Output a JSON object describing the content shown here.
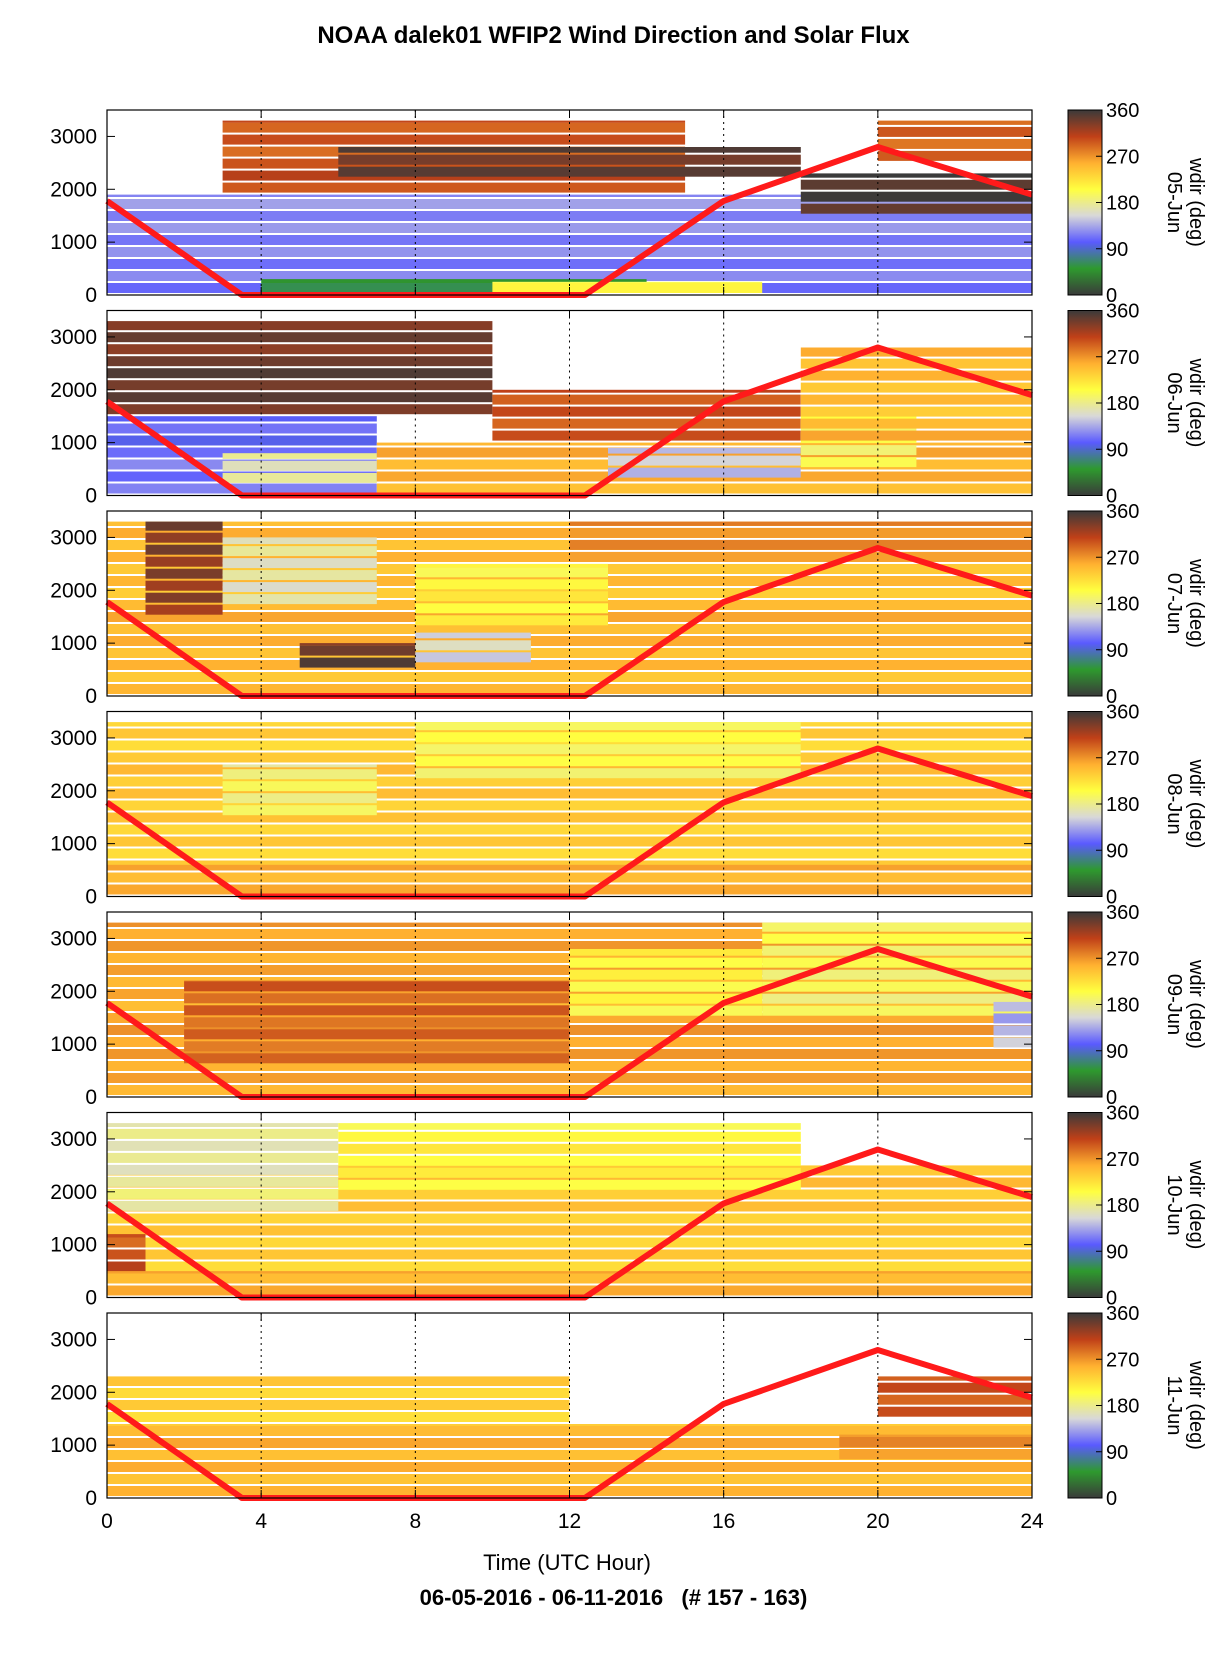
{
  "title": "NOAA dalek01 WFIP2 Wind Direction and Solar Flux",
  "footer": "06-05-2016 - 06-11-2016   (# 157 - 163)",
  "colors": {
    "solar_flux_line": "#ff1a1a",
    "colormap": [
      "#3a3a3a",
      "#2e9a2e",
      "#5a5aff",
      "#d8d8d8",
      "#ffff40",
      "#ffb030",
      "#c04018",
      "#3a3a3a"
    ]
  },
  "chart_data": {
    "type": "heatmap",
    "xlabel": "Time (UTC Hour)",
    "x_ticks": [
      0,
      4,
      8,
      12,
      16,
      20,
      24
    ],
    "xlim": [
      0,
      24
    ],
    "ylim": [
      0,
      3500
    ],
    "y_ticks": [
      0,
      1000,
      2000,
      3000
    ],
    "colorbar": {
      "label": "wdir (deg)",
      "range": [
        0,
        360
      ],
      "ticks": [
        0,
        90,
        180,
        270,
        360
      ]
    },
    "solar_flux_series": {
      "x": [
        0,
        3.5,
        12.4,
        16,
        20,
        24
      ],
      "y": [
        1780,
        0,
        0,
        1780,
        2800,
        1900
      ]
    },
    "panels": [
      {
        "date": "05-Jun",
        "regions": [
          {
            "t0": 0,
            "t1": 24,
            "h0": 0,
            "h1": 1900,
            "wdir": 120
          },
          {
            "t0": 4,
            "t1": 14,
            "h0": 0,
            "h1": 300,
            "wdir": 60
          },
          {
            "t0": 10,
            "t1": 17,
            "h0": 0,
            "h1": 250,
            "wdir": 200
          },
          {
            "t0": 3,
            "t1": 15,
            "h0": 1900,
            "h1": 3300,
            "wdir": 300
          },
          {
            "t0": 6,
            "t1": 18,
            "h0": 2200,
            "h1": 2800,
            "wdir": 340
          },
          {
            "t0": 18,
            "t1": 24,
            "h0": 1500,
            "h1": 2300,
            "wdir": 350
          },
          {
            "t0": 20,
            "t1": 24,
            "h0": 2500,
            "h1": 3300,
            "wdir": 290
          }
        ]
      },
      {
        "date": "06-Jun",
        "regions": [
          {
            "t0": 0,
            "t1": 7,
            "h0": 0,
            "h1": 1500,
            "wdir": 110
          },
          {
            "t0": 0,
            "t1": 10,
            "h0": 1500,
            "h1": 3300,
            "wdir": 340
          },
          {
            "t0": 3,
            "t1": 7,
            "h0": 200,
            "h1": 800,
            "wdir": 170
          },
          {
            "t0": 7,
            "t1": 24,
            "h0": 0,
            "h1": 1000,
            "wdir": 255
          },
          {
            "t0": 10,
            "t1": 18,
            "h0": 1000,
            "h1": 2000,
            "wdir": 300
          },
          {
            "t0": 13,
            "t1": 18,
            "h0": 300,
            "h1": 900,
            "wdir": 150
          },
          {
            "t0": 18,
            "t1": 21,
            "h0": 500,
            "h1": 1500,
            "wdir": 200
          },
          {
            "t0": 18,
            "t1": 24,
            "h0": 1000,
            "h1": 2800,
            "wdir": 250
          }
        ]
      },
      {
        "date": "07-Jun",
        "regions": [
          {
            "t0": 0,
            "t1": 24,
            "h0": 0,
            "h1": 3300,
            "wdir": 250
          },
          {
            "t0": 1,
            "t1": 3,
            "h0": 1500,
            "h1": 3300,
            "wdir": 330
          },
          {
            "t0": 3,
            "t1": 7,
            "h0": 1700,
            "h1": 3000,
            "wdir": 170
          },
          {
            "t0": 5,
            "t1": 8,
            "h0": 500,
            "h1": 1000,
            "wdir": 340
          },
          {
            "t0": 8,
            "t1": 11,
            "h0": 600,
            "h1": 1200,
            "wdir": 150
          },
          {
            "t0": 8,
            "t1": 13,
            "h0": 1300,
            "h1": 2500,
            "wdir": 210
          },
          {
            "t0": 12,
            "t1": 24,
            "h0": 2500,
            "h1": 3300,
            "wdir": 270
          }
        ]
      },
      {
        "date": "08-Jun",
        "regions": [
          {
            "t0": 0,
            "t1": 24,
            "h0": 0,
            "h1": 3300,
            "wdir": 240
          },
          {
            "t0": 3,
            "t1": 7,
            "h0": 1500,
            "h1": 2500,
            "wdir": 185
          },
          {
            "t0": 8,
            "t1": 18,
            "h0": 2200,
            "h1": 3300,
            "wdir": 195
          },
          {
            "t0": 0,
            "t1": 24,
            "h0": 0,
            "h1": 600,
            "wdir": 255
          }
        ]
      },
      {
        "date": "09-Jun",
        "regions": [
          {
            "t0": 0,
            "t1": 24,
            "h0": 0,
            "h1": 3300,
            "wdir": 260
          },
          {
            "t0": 2,
            "t1": 12,
            "h0": 600,
            "h1": 2200,
            "wdir": 290
          },
          {
            "t0": 12,
            "t1": 17,
            "h0": 1500,
            "h1": 2800,
            "wdir": 210
          },
          {
            "t0": 17,
            "t1": 24,
            "h0": 1500,
            "h1": 3300,
            "wdir": 195
          },
          {
            "t0": 23,
            "t1": 24,
            "h0": 900,
            "h1": 1800,
            "wdir": 140
          }
        ]
      },
      {
        "date": "10-Jun",
        "regions": [
          {
            "t0": 0,
            "t1": 24,
            "h0": 0,
            "h1": 2500,
            "wdir": 240
          },
          {
            "t0": 0,
            "t1": 6,
            "h0": 1600,
            "h1": 3300,
            "wdir": 175
          },
          {
            "t0": 0,
            "t1": 1,
            "h0": 0,
            "h1": 1200,
            "wdir": 300
          },
          {
            "t0": 6,
            "t1": 18,
            "h0": 2000,
            "h1": 3300,
            "wdir": 210
          },
          {
            "t0": 0,
            "t1": 24,
            "h0": 0,
            "h1": 500,
            "wdir": 255
          }
        ]
      },
      {
        "date": "11-Jun",
        "regions": [
          {
            "t0": 0,
            "t1": 24,
            "h0": 0,
            "h1": 1400,
            "wdir": 250
          },
          {
            "t0": 0,
            "t1": 12,
            "h0": 1400,
            "h1": 2300,
            "wdir": 235
          },
          {
            "t0": 20,
            "t1": 24,
            "h0": 1500,
            "h1": 2300,
            "wdir": 300
          },
          {
            "t0": 19,
            "t1": 24,
            "h0": 700,
            "h1": 1200,
            "wdir": 275
          }
        ]
      }
    ]
  }
}
